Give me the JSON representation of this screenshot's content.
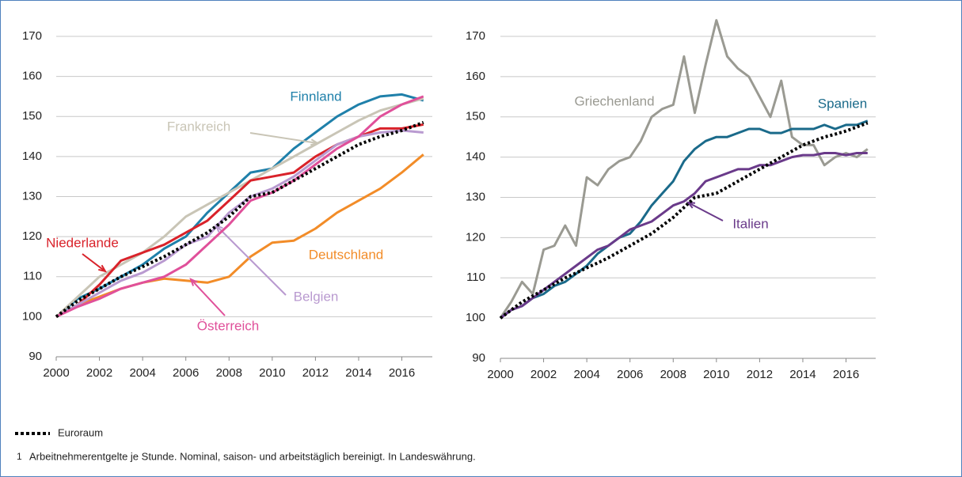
{
  "chart_data": [
    {
      "type": "line",
      "x": [
        2000,
        2001,
        2002,
        2003,
        2004,
        2005,
        2006,
        2007,
        2008,
        2009,
        2010,
        2011,
        2012,
        2013,
        2014,
        2015,
        2016,
        2017
      ],
      "xlim": [
        2000,
        2017.3
      ],
      "xticks": [
        2000,
        2002,
        2004,
        2006,
        2008,
        2010,
        2012,
        2014,
        2016
      ],
      "ylim": [
        90,
        170
      ],
      "yticks": [
        90,
        100,
        110,
        120,
        130,
        140,
        150,
        160,
        170
      ],
      "grid": true,
      "series": [
        {
          "name": "Finnland",
          "color": "#1f80aa",
          "values": [
            100,
            104.5,
            107,
            110,
            113,
            117,
            120,
            126,
            131,
            136,
            137,
            142,
            146,
            150,
            153,
            155,
            155.5,
            154
          ]
        },
        {
          "name": "Frankreich",
          "color": "#c9c5b6",
          "values": [
            100,
            105,
            110,
            113,
            116,
            120,
            125,
            128,
            131,
            134,
            137,
            140,
            143,
            146,
            149,
            151.5,
            153,
            154.5
          ]
        },
        {
          "name": "Niederlande",
          "color": "#d9222a",
          "values": [
            100,
            103,
            108,
            114,
            116,
            118,
            121,
            124,
            129,
            134,
            135,
            136,
            140,
            143,
            145,
            147,
            147,
            148
          ]
        },
        {
          "name": "Deutschland",
          "color": "#f28c28",
          "values": [
            100,
            103,
            105,
            107,
            108.5,
            109.5,
            109,
            108.5,
            110,
            115,
            118.5,
            119,
            122,
            126,
            129,
            132,
            136,
            140.5
          ]
        },
        {
          "name": "Belgien",
          "color": "#b99ad0",
          "values": [
            100,
            103,
            106,
            109,
            111,
            114,
            118,
            120,
            126,
            130,
            132,
            135,
            139,
            143,
            145,
            146,
            146.5,
            146
          ]
        },
        {
          "name": "Österreich",
          "color": "#e0509a",
          "values": [
            100,
            102.5,
            104.5,
            107,
            108.5,
            110,
            113,
            118,
            123,
            129,
            131,
            134,
            138,
            142,
            145,
            150,
            153,
            155
          ]
        },
        {
          "name": "Euroraum",
          "color": "#000000",
          "dash": "dotted",
          "values": [
            100,
            104,
            107,
            110,
            112.5,
            115,
            118,
            121,
            125,
            130,
            131,
            134,
            137,
            140,
            143,
            145,
            146.5,
            148.5
          ]
        }
      ]
    },
    {
      "type": "line",
      "x": [
        2000,
        2000.5,
        2001,
        2001.5,
        2002,
        2002.5,
        2003,
        2003.5,
        2004,
        2004.5,
        2005,
        2005.5,
        2006,
        2006.5,
        2007,
        2007.5,
        2008,
        2008.5,
        2009,
        2009.5,
        2010,
        2010.5,
        2011,
        2011.5,
        2012,
        2012.5,
        2013,
        2013.5,
        2014,
        2014.5,
        2015,
        2015.5,
        2016,
        2016.5,
        2017
      ],
      "xlim": [
        2000,
        2017.3
      ],
      "xticks": [
        2000,
        2002,
        2004,
        2006,
        2008,
        2010,
        2012,
        2014,
        2016
      ],
      "ylim": [
        90,
        170
      ],
      "yticks": [
        90,
        100,
        110,
        120,
        130,
        140,
        150,
        160,
        170
      ],
      "grid": true,
      "series": [
        {
          "name": "Griechenland",
          "color": "#9a9a92",
          "values": [
            100,
            104,
            109,
            106,
            117,
            118,
            123,
            118,
            135,
            133,
            137,
            139,
            140,
            144,
            150,
            152,
            153,
            165,
            151,
            163,
            174,
            165,
            162,
            160,
            155,
            150,
            159,
            145,
            143,
            143,
            138,
            140,
            141,
            140,
            142
          ]
        },
        {
          "name": "Spanien",
          "color": "#1a6a8a",
          "values": [
            100,
            102,
            103,
            105,
            106,
            108,
            109,
            111,
            113,
            116,
            118,
            120,
            121,
            124,
            128,
            131,
            134,
            139,
            142,
            144,
            145,
            145,
            146,
            147,
            147,
            146,
            146,
            147,
            147,
            147,
            148,
            147,
            148,
            148,
            149
          ]
        },
        {
          "name": "Italien",
          "color": "#6a3a8a",
          "values": [
            100,
            102,
            103,
            105,
            107,
            109,
            111,
            113,
            115,
            117,
            118,
            120,
            122,
            123,
            124,
            126,
            128,
            129,
            131,
            134,
            135,
            136,
            137,
            137,
            138,
            138,
            139,
            140,
            140.5,
            140.5,
            141,
            141,
            140.5,
            141,
            141
          ]
        },
        {
          "color": "#000000",
          "dash": "dotted",
          "values": [
            100,
            102,
            104,
            105.5,
            107,
            108.5,
            110,
            111.2,
            112.5,
            113.7,
            115,
            116.5,
            118,
            119.5,
            121,
            123,
            125,
            127.5,
            130,
            130.5,
            131,
            132.5,
            134,
            135.5,
            137,
            138.5,
            140,
            141.5,
            143,
            144,
            145,
            145.7,
            146.5,
            147.5,
            148.5
          ]
        }
      ]
    }
  ],
  "footnote_marker": "1",
  "footnote": "Arbeitnehmerentgelte je Stunde. Nominal, saison- und arbeitstäglich bereinigt. In Landeswährung."
}
